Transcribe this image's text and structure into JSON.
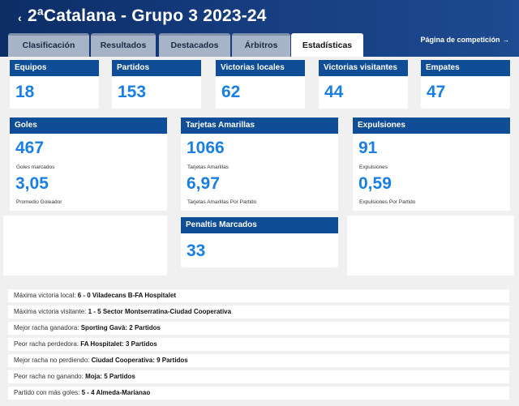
{
  "header": {
    "back_glyph": "‹",
    "title": "2ªCatalana - Grupo 3 2023-24",
    "competition_link": "Página de competición →"
  },
  "tabs": [
    {
      "label": "Clasificación",
      "active": false
    },
    {
      "label": "Resultados",
      "active": false
    },
    {
      "label": "Destacados",
      "active": false
    },
    {
      "label": "Árbitros",
      "active": false
    },
    {
      "label": "Estadísticas",
      "active": true
    }
  ],
  "summary": {
    "equipos": {
      "label": "Equipos",
      "value": "18"
    },
    "partidos": {
      "label": "Partidos",
      "value": "153"
    },
    "victorias_locales": {
      "label": "Victorias locales",
      "value": "62"
    },
    "victorias_visitantes": {
      "label": "Victorias visitantes",
      "value": "44"
    },
    "empates": {
      "label": "Empates",
      "value": "47"
    }
  },
  "goles": {
    "label": "Goles",
    "total": "467",
    "total_caption": "Goles marcados",
    "avg": "3,05",
    "avg_caption": "Promedio Goleador"
  },
  "amarillas": {
    "label": "Tarjetas Amarillas",
    "total": "1066",
    "total_caption": "Tarjetas Amarillas",
    "avg": "6,97",
    "avg_caption": "Tarjetas Amarillas Por Partido"
  },
  "expulsiones": {
    "label": "Expulsiones",
    "total": "91",
    "total_caption": "Expulsiones",
    "avg": "0,59",
    "avg_caption": "Expulsiones Por Partido"
  },
  "penaltis": {
    "label": "Penaltis Marcados",
    "value": "33"
  },
  "records": [
    {
      "label": "Máxima victoria local: ",
      "value": "6 - 0 Viladecans B-FA Hospitalet"
    },
    {
      "label": "Máxima victoria visitante: ",
      "value": "1 - 5 Sector Montserratina-Ciudad Cooperativa"
    },
    {
      "label": "Mejor racha ganadora: ",
      "value": "Sporting Gavà: 2 Partidos"
    },
    {
      "label": "Peor racha perdedora: ",
      "value": "FA Hospitalet: 3 Partidos"
    },
    {
      "label": "Mejor racha no perdiendo: ",
      "value": "Ciudad Cooperativa: 9 Partidos"
    },
    {
      "label": "Peor racha no ganando: ",
      "value": "Moja: 5 Partidos"
    },
    {
      "label": "Partido con más goles: ",
      "value": "5 - 4 Almeda-Marianao"
    }
  ]
}
